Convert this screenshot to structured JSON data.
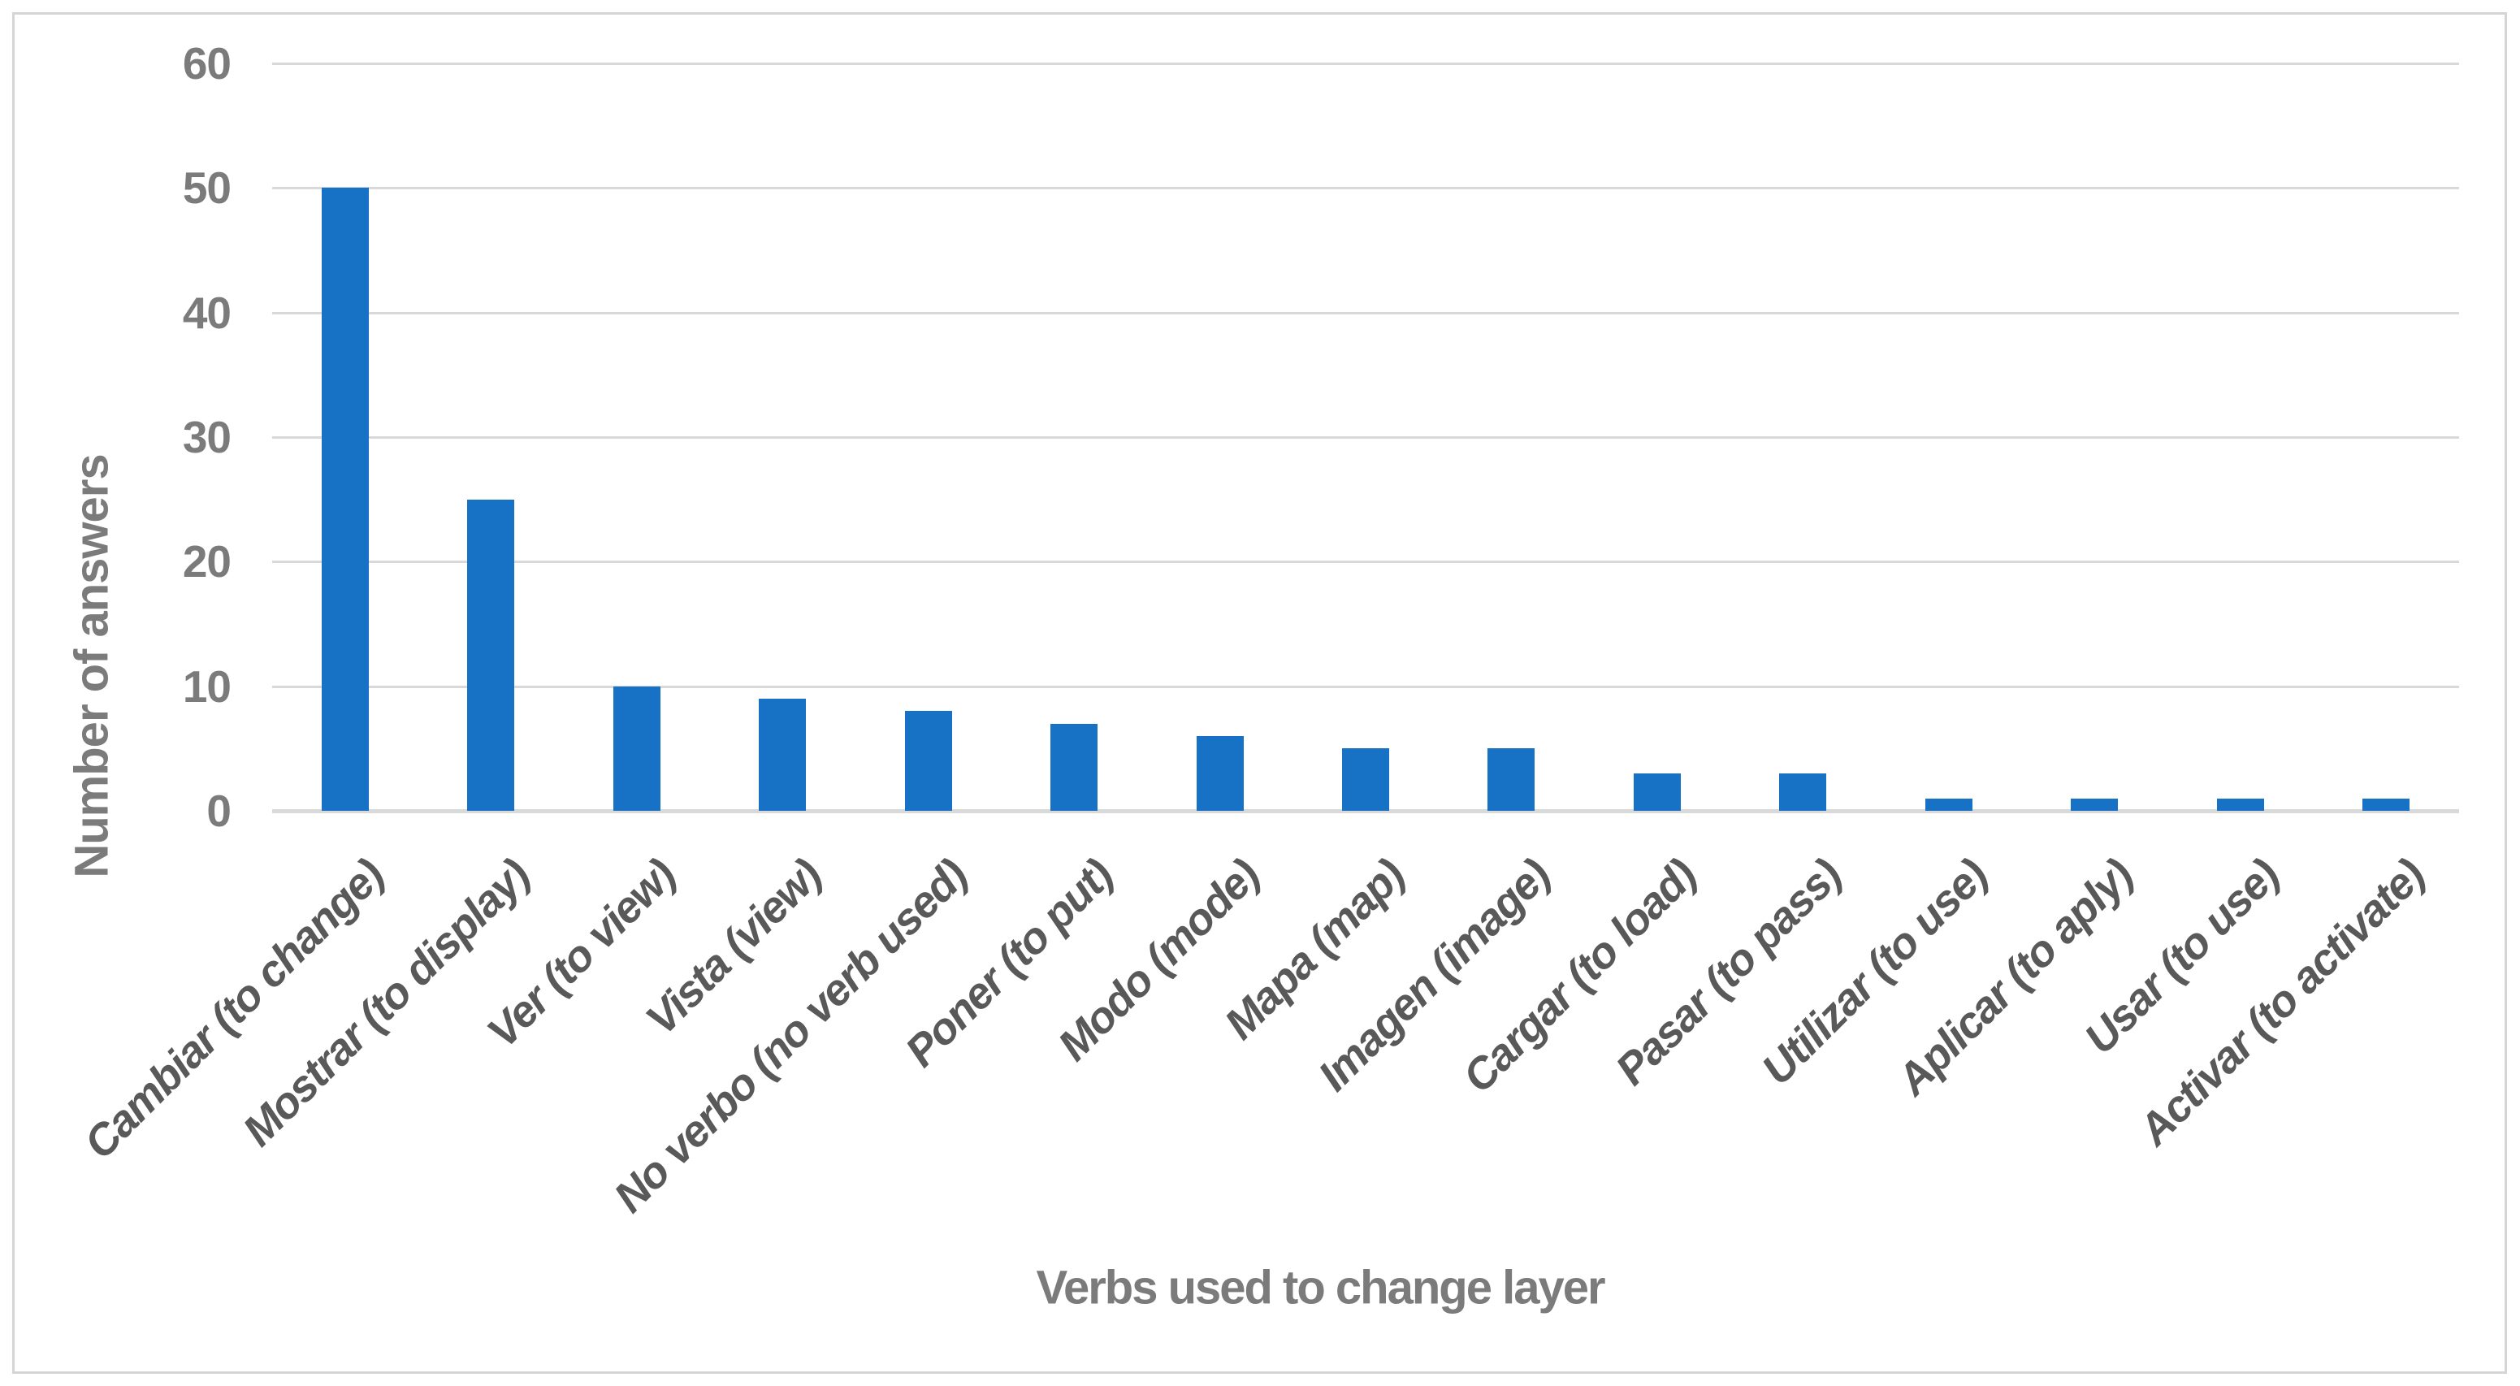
{
  "chart_data": {
    "type": "bar",
    "title": "",
    "categories": [
      "Cambiar (to change)",
      "Mostrar (to display)",
      "Ver (to view)",
      "Vista (view)",
      "No verbo (no verb used)",
      "Poner (to put)",
      "Modo (mode)",
      "Mapa (map)",
      "Imagen (image)",
      "Cargar (to load)",
      "Pasar (to pass)",
      "Utilizar (to use)",
      "Aplicar (to aply)",
      "Usar (to use)",
      "Activar (to activate)"
    ],
    "values": [
      50,
      25,
      10,
      9,
      8,
      7,
      6,
      5,
      5,
      3,
      3,
      1,
      1,
      1,
      1
    ],
    "xlabel": "Verbs used to change layer",
    "ylabel": "Number of answers",
    "ylim": [
      0,
      60
    ],
    "yticks": [
      0,
      10,
      20,
      30,
      40,
      50,
      60
    ],
    "grid": "horizontal",
    "legend": "none",
    "colors": {
      "bar": "#1772C6",
      "gridline": "#D9D9D9",
      "axis_line": "#D9D9D9",
      "tick_label": "#7B7B7B",
      "category_label": "#595959",
      "axis_title": "#7B7B7B",
      "chart_border": "#D5D5D5",
      "background": "#FFFFFF"
    }
  }
}
